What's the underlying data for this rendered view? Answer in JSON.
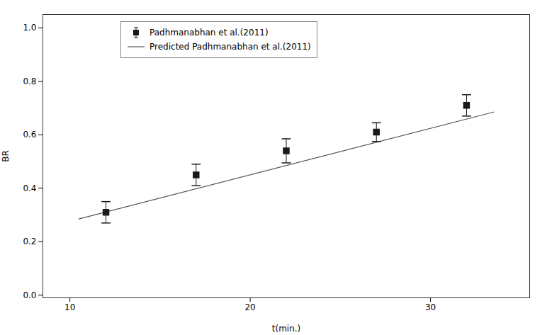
{
  "chart_data": {
    "type": "scatter",
    "xlabel": "t(min.)",
    "ylabel": "BR",
    "xlim": [
      8.5,
      35.5
    ],
    "ylim": [
      -0.01,
      1.05
    ],
    "xticks": [
      10,
      20,
      30
    ],
    "yticks": [
      {
        "value": 0.0,
        "label": "0.0"
      },
      0.2,
      0.4,
      0.6,
      0.8,
      {
        "value": 1.0,
        "label": "1.0"
      }
    ],
    "legend": "upper left",
    "series": [
      {
        "name": "Padhmanabhan et al.(2011)",
        "type": "scatter",
        "marker": "square",
        "color": "#1a1a1a",
        "x": [
          12,
          17,
          22,
          27,
          32
        ],
        "values": [
          0.31,
          0.45,
          0.54,
          0.61,
          0.71
        ],
        "errors": [
          0.04,
          0.04,
          0.045,
          0.035,
          0.04
        ]
      },
      {
        "name": "Predicted Padhmanabhan et al.(2011)",
        "type": "line",
        "color": "#555555",
        "x": [
          10.5,
          33.5
        ],
        "values": [
          0.285,
          0.685
        ]
      }
    ]
  }
}
